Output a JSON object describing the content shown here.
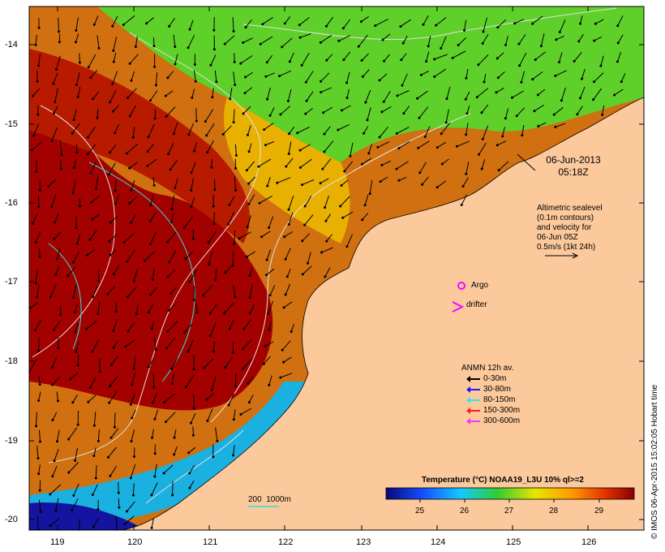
{
  "timestamp": {
    "date": "06-Jun-2013",
    "time": "05:18Z"
  },
  "altimetry_note": [
    "Altimetric sealevel",
    "(0.1m contours)",
    "and velocity for",
    "06-Jun 05Z",
    "0.5m/s (1kt 24h)"
  ],
  "markers": {
    "argo": "Argo",
    "drifter": "drifter"
  },
  "anmn_legend": {
    "title": "ANMN 12h av.",
    "items": [
      {
        "label": "0-30m",
        "color": "#000000"
      },
      {
        "label": "30-80m",
        "color": "#1a1aff"
      },
      {
        "label": "80-150m",
        "color": "#33e6e6"
      },
      {
        "label": "150-300m",
        "color": "#ff1a1a"
      },
      {
        "label": "300-600m",
        "color": "#ff33ff"
      }
    ]
  },
  "colorbar": {
    "title": "Temperature (°C) NOAA19_L3U 10% ql>=2",
    "ticks": [
      "25",
      "26",
      "27",
      "28",
      "29"
    ]
  },
  "isobath_label": "200  1000m",
  "credit": "© IMOS 06-Apr-2015 15:02:05 Hobart time",
  "axes": {
    "lon_ticks": [
      "119",
      "120",
      "121",
      "122",
      "123",
      "124",
      "125",
      "126"
    ],
    "lat_ticks": [
      "-14",
      "-15",
      "-16",
      "-17",
      "-18",
      "-19",
      "-20"
    ]
  },
  "colors": {
    "land": "#fbc99c",
    "warm": "#a30000",
    "cool": "#1414a0",
    "mid": "#33cc33"
  }
}
